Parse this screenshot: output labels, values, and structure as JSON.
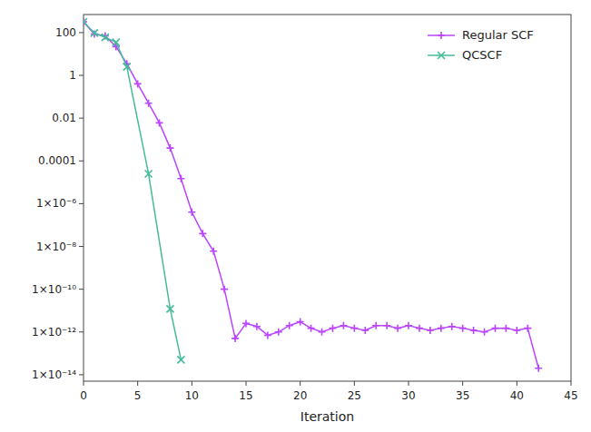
{
  "chart_data": {
    "type": "line",
    "x_label": "Iteration",
    "log": "y",
    "grid": false,
    "legend": "upper right",
    "xlim": [
      0,
      45
    ],
    "ylim": [
      5e-15,
      700
    ],
    "xticks": [
      0,
      5,
      10,
      15,
      20,
      25,
      30,
      35,
      40,
      45
    ],
    "yticks": [
      100,
      1,
      0.01,
      0.0001,
      {
        "value": 1e-06,
        "label": "1×10⁻⁶"
      },
      {
        "value": 1e-08,
        "label": "1×10⁻⁸"
      },
      {
        "value": 1e-10,
        "label": "1×10⁻¹⁰"
      },
      {
        "value": 1e-12,
        "label": "1×10⁻¹²"
      },
      {
        "value": 1e-14,
        "label": "1×10⁻¹⁴"
      }
    ],
    "series": [
      {
        "name": "Regular SCF",
        "color": "#bb44ff",
        "marker": "plus",
        "line_style": "solid",
        "x": [
          0,
          1,
          2,
          3,
          4,
          5,
          6,
          7,
          8,
          9,
          10,
          11,
          12,
          13,
          14,
          15,
          16,
          17,
          18,
          19,
          20,
          21,
          22,
          23,
          24,
          25,
          26,
          27,
          28,
          29,
          30,
          31,
          32,
          33,
          34,
          35,
          36,
          37,
          38,
          39,
          40,
          41,
          42
        ],
        "values": [
          320.0,
          85.0,
          70.0,
          22.0,
          3.5,
          0.4,
          0.05,
          0.006,
          0.0004,
          1.5e-05,
          4e-07,
          4e-08,
          6e-09,
          1e-10,
          5e-13,
          2.5e-12,
          1.8e-12,
          7e-13,
          1e-12,
          2e-12,
          3e-12,
          1.5e-12,
          1e-12,
          1.5e-12,
          2e-12,
          1.5e-12,
          1.2e-12,
          2e-12,
          2e-12,
          1.5e-12,
          2e-12,
          1.5e-12,
          1.2e-12,
          1.5e-12,
          1.8e-12,
          1.5e-12,
          1.2e-12,
          1e-12,
          1.5e-12,
          1.5e-12,
          1.2e-12,
          1.5e-12,
          2e-14
        ]
      },
      {
        "name": "QCSCF",
        "color": "#44bb99",
        "marker": "x",
        "line_style": "solid",
        "x": [
          0,
          1,
          2,
          3,
          4,
          6,
          8,
          9
        ],
        "values": [
          320.0,
          95.0,
          60.0,
          35.0,
          2.5,
          2.5e-05,
          1.2e-11,
          5e-14
        ]
      }
    ]
  }
}
